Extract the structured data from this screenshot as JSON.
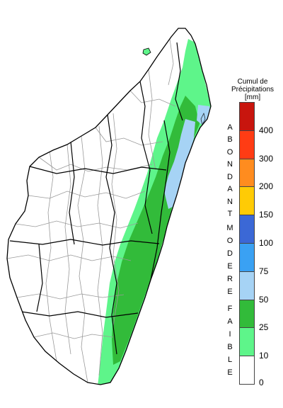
{
  "legend": {
    "title_lines": [
      "Cumul de",
      "Précipitations",
      "[mm]"
    ],
    "bins": [
      {
        "min": 0,
        "max": 10,
        "color": "#ffffff"
      },
      {
        "min": 10,
        "max": 25,
        "color": "#5ef58a"
      },
      {
        "min": 25,
        "max": 50,
        "color": "#32bb3a"
      },
      {
        "min": 50,
        "max": 75,
        "color": "#a6d3f5"
      },
      {
        "min": 75,
        "max": 100,
        "color": "#3aa1f3"
      },
      {
        "min": 100,
        "max": 150,
        "color": "#3b68d6"
      },
      {
        "min": 150,
        "max": 200,
        "color": "#ffcb05"
      },
      {
        "min": 200,
        "max": 300,
        "color": "#ff8c1f"
      },
      {
        "min": 300,
        "max": 400,
        "color": "#ff3c14"
      },
      {
        "min": 400,
        "max": null,
        "color": "#c8150e"
      }
    ],
    "tick_labels": [
      "0",
      "10",
      "25",
      "50",
      "75",
      "100",
      "150",
      "200",
      "300",
      "400"
    ],
    "categories": [
      {
        "name": "abondant",
        "letters": [
          "A",
          "B",
          "O",
          "N",
          "D",
          "A",
          "N",
          "T"
        ]
      },
      {
        "name": "modere",
        "letters": [
          "M",
          "O",
          "D",
          "E",
          "R",
          "E"
        ]
      },
      {
        "name": "faible",
        "letters": [
          "F",
          "A",
          "I",
          "B",
          "L",
          "E"
        ]
      }
    ]
  },
  "map": {
    "region": "Madagascar",
    "outline_color": "#000000",
    "district_color": "#999999"
  }
}
